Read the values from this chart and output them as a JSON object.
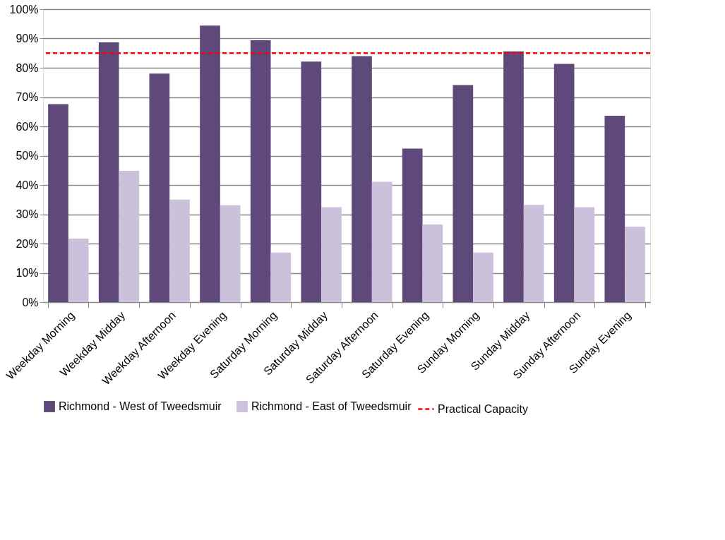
{
  "chart_data": {
    "type": "bar",
    "categories": [
      "Weekday Morning",
      "Weekday Midday",
      "Weekday Afternoon",
      "Weekday Evening",
      "Saturday Morning",
      "Saturday Midday",
      "Saturday Afternoon",
      "Saturday Evening",
      "Sunday Morning",
      "Sunday Midday",
      "Sunday Afternoon",
      "Sunday Evening"
    ],
    "series": [
      {
        "name": "Richmond - West of Tweedsmuir",
        "color": "#5f497a",
        "values": [
          67.6,
          88.7,
          78.0,
          94.4,
          89.4,
          82.1,
          84.0,
          52.4,
          74.1,
          85.6,
          81.3,
          63.6
        ]
      },
      {
        "name": "Richmond - East of Tweedsmuir",
        "color": "#ccc1da",
        "values": [
          21.7,
          44.8,
          35.0,
          33.1,
          16.9,
          32.4,
          41.1,
          26.5,
          16.9,
          33.2,
          32.4,
          25.7
        ]
      }
    ],
    "ylim": [
      0,
      100
    ],
    "yticks": [
      {
        "value": 0,
        "label": "0%"
      },
      {
        "value": 10,
        "label": "10%"
      },
      {
        "value": 20,
        "label": "20%"
      },
      {
        "value": 30,
        "label": "30%"
      },
      {
        "value": 40,
        "label": "40%"
      },
      {
        "value": 50,
        "label": "50%"
      },
      {
        "value": 60,
        "label": "60%"
      },
      {
        "value": 70,
        "label": "70%"
      },
      {
        "value": 80,
        "label": "80%"
      },
      {
        "value": 90,
        "label": "90%"
      },
      {
        "value": 100,
        "label": "100%"
      }
    ],
    "ref_lines": [
      {
        "axis": "y",
        "value": 85,
        "label": "Practical Capacity",
        "color": "#ff0000",
        "line_style": "dashed"
      }
    ],
    "grid": "y",
    "legend": "bottom"
  }
}
